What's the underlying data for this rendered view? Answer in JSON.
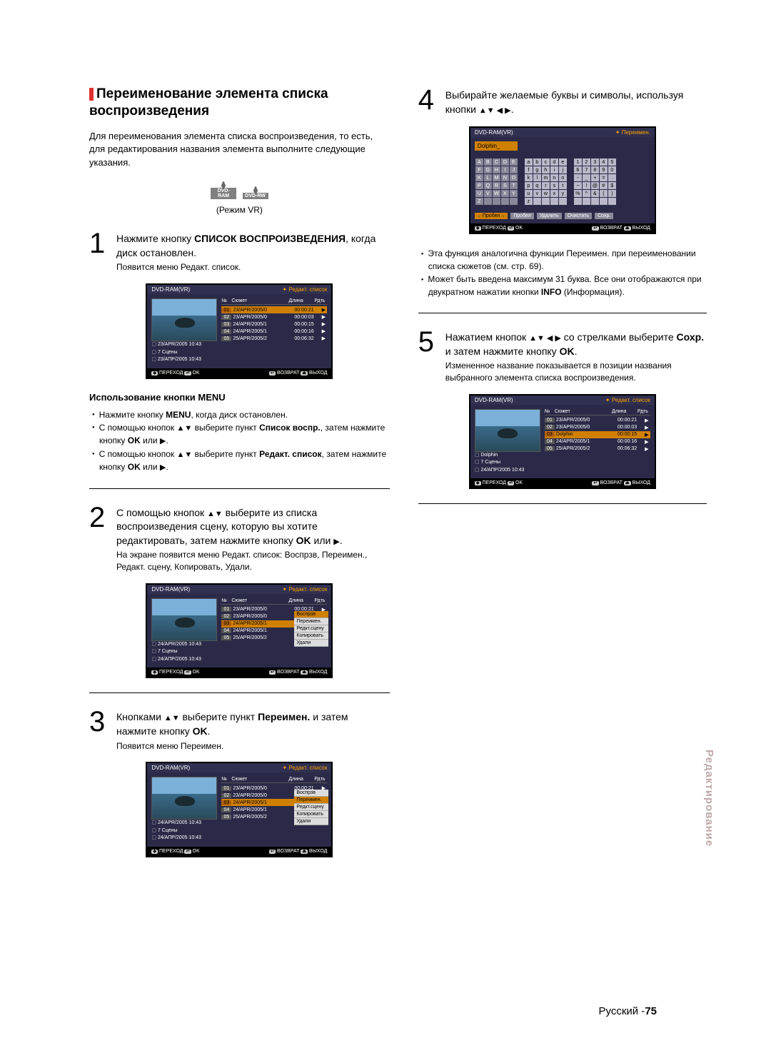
{
  "leftCol": {
    "title": "Переименование элемента списка воспроизведения",
    "intro": "Для переименования элемента списка воспроизведения, то есть, для редактирования названия элемента выполните следующие указания.",
    "discs": [
      "DVD-RAM",
      "DVD-RW"
    ],
    "modeCaption": "(Режим VR)",
    "step1": {
      "main": "Нажмите кнопку СПИСОК ВОСПРОИЗВЕДЕНИЯ, когда диск остановлен.",
      "sub": "Появится меню Редакт. список."
    },
    "ss1": {
      "topLeft": "DVD-RAM(VR)",
      "topRight": "Редакт. список",
      "headers": [
        "№",
        "Сюжет",
        "Длина",
        "Рдть"
      ],
      "rows": [
        [
          "01",
          "23/APR/2005/0",
          "00:00:21",
          "▶"
        ],
        [
          "02",
          "23/APR/2005/0",
          "00:00:03",
          "▶"
        ],
        [
          "03",
          "24/APR/2005/1",
          "00:00:15",
          "▶"
        ],
        [
          "04",
          "24/APR/2005/1",
          "00:00:16",
          "▶"
        ],
        [
          "05",
          "25/APR/2005/2",
          "00:06:32",
          "▶"
        ]
      ],
      "meta": [
        "23/APR/2005 10:43",
        "7 Сцены",
        "23/АПР/2005 10:43"
      ],
      "bottom": {
        "move": "ПЕРЕХОД",
        "ok": "OK",
        "ret": "ВОЗВРАТ",
        "exit": "ВЫХОД"
      }
    },
    "menuHead": "Использование кнопки MENU",
    "menuItems": [
      "Нажмите кнопку MENU, когда диск остановлен.",
      "С помощью кнопок ▲▼ выберите пункт Список воспр., затем нажмите кнопку OK или ▶.",
      "С помощью кнопок ▲▼ выберите пункт Редакт. список, затем нажмите кнопку OK или ▶."
    ],
    "step2": {
      "main": "С помощью кнопок ▲▼ выберите из списка воспроизведения сцену, которую вы хотите редактировать, затем нажмите кнопку OK или ▶.",
      "sub": "На экране появится меню Редакт. список: Воспрзв, Переимен., Редакт. сцену, Копировать, Удали."
    },
    "ss2": {
      "topLeft": "DVD-RAM(VR)",
      "topRight": "Редакт. список",
      "headers": [
        "№",
        "Сюжет",
        "Длина",
        "Рдть"
      ],
      "rows": [
        [
          "01",
          "23/APR/2005/0",
          "00:00:21",
          "▶"
        ],
        [
          "02",
          "23/APR/2005/0",
          "00:00:03",
          "▶"
        ],
        [
          "03",
          "24/APR/2005/1",
          "",
          "▶"
        ],
        [
          "04",
          "24/APR/2005/1",
          "",
          "▶"
        ],
        [
          "05",
          "25/APR/2005/2",
          "",
          "▶"
        ]
      ],
      "hlRow": 2,
      "popup": [
        "Воспрзв",
        "Переимен.",
        "Редкт.сцену",
        "Копировать",
        "Удали"
      ],
      "meta": [
        "24/APR/2005 10:43",
        "7 Сцены",
        "24/АПР/2005 10:43"
      ],
      "bottom": {
        "move": "ПЕРЕХОД",
        "ok": "OK",
        "ret": "ВОЗВРАТ",
        "exit": "ВЫХОД"
      }
    },
    "step3": {
      "main": "Кнопками ▲▼ выберите пункт Переимен. и затем нажмите кнопку OK.",
      "sub": "Появится меню Переимен."
    },
    "ss3": {
      "topLeft": "DVD-RAM(VR)",
      "topRight": "Редакт. список",
      "headers": [
        "№",
        "Сюжет",
        "Длина",
        "Рдть"
      ],
      "rows": [
        [
          "01",
          "23/APR/2005/0",
          "00:00:21",
          "▶"
        ],
        [
          "02",
          "23/APR/2005/0",
          "00:00:03",
          "▶"
        ],
        [
          "03",
          "24/APR/2005/1",
          "",
          "▶"
        ],
        [
          "04",
          "24/APR/2005/1",
          "",
          "▶"
        ],
        [
          "05",
          "25/APR/2005/2",
          "",
          "▶"
        ]
      ],
      "hlRow": 2,
      "popup": [
        "Воспрзв",
        "Переимен.",
        "Редкт.сцену",
        "Копировать",
        "Удали"
      ],
      "popupHl": 1,
      "meta": [
        "24/APR/2005 10:43",
        "7 Сцены",
        "24/АПР/2005 10:43"
      ],
      "bottom": {
        "move": "ПЕРЕХОД",
        "ok": "OK",
        "ret": "ВОЗВРАТ",
        "exit": "ВЫХОД"
      }
    }
  },
  "rightCol": {
    "step4": {
      "main": "Выбирайте желаемые буквы и символы, используя кнопки ▲▼ ◀ ▶."
    },
    "ssKb": {
      "topLeft": "DVD-RAM(VR)",
      "topRight": "Переимен.",
      "fieldLabel": "Dolphin_",
      "caps": [
        [
          "A",
          "B",
          "C",
          "D",
          "E"
        ],
        [
          "F",
          "G",
          "H",
          "I",
          "J"
        ],
        [
          "K",
          "L",
          "M",
          "N",
          "O"
        ],
        [
          "P",
          "Q",
          "R",
          "S",
          "T"
        ],
        [
          "U",
          "V",
          "W",
          "X",
          "Y"
        ],
        [
          "Z",
          "",
          "",
          "",
          ""
        ]
      ],
      "lower": [
        [
          "a",
          "b",
          "c",
          "d",
          "e"
        ],
        [
          "f",
          "g",
          "h",
          "i",
          "j"
        ],
        [
          "k",
          "l",
          "m",
          "n",
          "o"
        ],
        [
          "p",
          "q",
          "r",
          "s",
          "t"
        ],
        [
          "u",
          "v",
          "w",
          "x",
          "y"
        ],
        [
          "z",
          "",
          "",
          "",
          ""
        ]
      ],
      "nums": [
        [
          "1",
          "2",
          "3",
          "4",
          "5"
        ],
        [
          "6",
          "7",
          "8",
          "9",
          "0"
        ],
        [
          "-",
          "_",
          "+",
          "=",
          "."
        ],
        [
          "~",
          "!",
          "@",
          "#",
          "$"
        ],
        [
          "%",
          "^",
          "&",
          "(",
          ")"
        ],
        [
          "",
          "",
          "",
          "",
          ""
        ]
      ],
      "buttons": [
        "←Пробел→",
        "Пробел",
        "Удалить",
        "Очистить",
        "Сохр."
      ],
      "bottom": {
        "move": "ПЕРЕХОД",
        "ok": "OK",
        "ret": "ВОЗВРАТ",
        "exit": "ВЫХОД"
      }
    },
    "notes": [
      "Эта функция аналогична функции Переимен. при переименовании списка сюжетов (см. стр. 69).",
      "Может быть введена максимум 31 буква. Все они отображаются при двукратном нажатии кнопки INFO (Информация)."
    ],
    "step5": {
      "main": "Нажатием кнопок ▲▼ ◀ ▶ со стрелками выберите Сохр. и затем нажмите кнопку OK.",
      "sub": "Измененное название показывается в позиции названия выбранного элемента списка воспроизведения."
    },
    "ss5": {
      "topLeft": "DVD-RAM(VR)",
      "topRight": "Редакт. список",
      "headers": [
        "№",
        "Сюжет",
        "Длина",
        "Рдть"
      ],
      "rows": [
        [
          "01",
          "23/APR/2005/0",
          "00:00:21",
          "▶"
        ],
        [
          "02",
          "23/APR/2005/0",
          "00:00:03",
          "▶"
        ],
        [
          "03",
          "Dolphin",
          "00:00:15",
          "▶"
        ],
        [
          "04",
          "24/APR/2005/1",
          "00:00:16",
          "▶"
        ],
        [
          "05",
          "25/APR/2005/2",
          "00:06:32",
          "▶"
        ]
      ],
      "hlRow": 2,
      "meta": [
        "Dolphin",
        "7 Сцены",
        "24/АПР/2005 10:43"
      ],
      "bottom": {
        "move": "ПЕРЕХОД",
        "ok": "OK",
        "ret": "ВОЗВРАТ",
        "exit": "ВЫХОД"
      }
    }
  },
  "sideTab": "Редактирование",
  "footer": {
    "lang": "Русский -",
    "page": "75"
  }
}
